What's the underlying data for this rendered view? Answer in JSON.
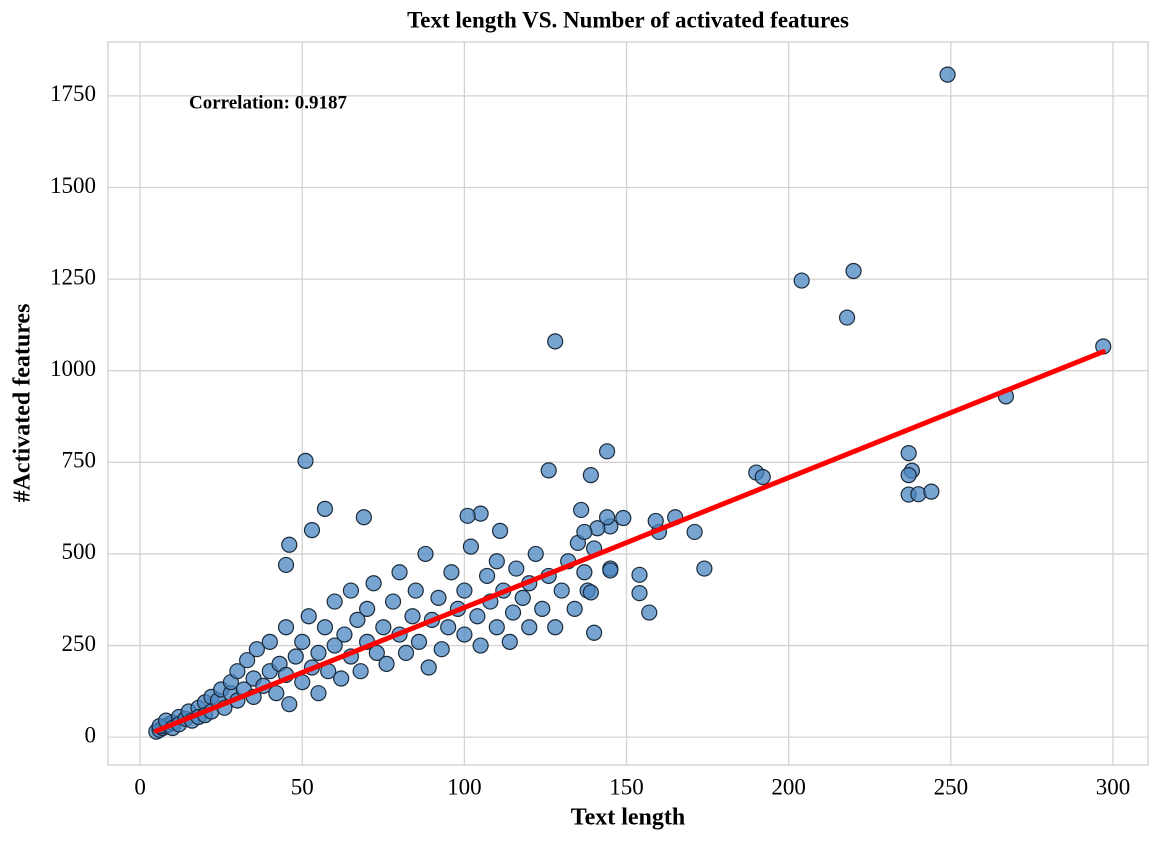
{
  "chart_data": {
    "type": "scatter",
    "title": "Text length VS. Number of activated features",
    "xlabel": "Text length",
    "ylabel": "#Activated features",
    "annotation": "Correlation: 0.9187",
    "color": "#4a86c0",
    "x": [
      5,
      6,
      7,
      8,
      9,
      10,
      6,
      8,
      10,
      12,
      12,
      14,
      15,
      16,
      18,
      18,
      20,
      20,
      22,
      22,
      24,
      25,
      26,
      28,
      28,
      30,
      30,
      32,
      33,
      35,
      35,
      36,
      38,
      40,
      40,
      42,
      43,
      45,
      45,
      46,
      48,
      50,
      50,
      52,
      53,
      55,
      55,
      57,
      58,
      60,
      60,
      62,
      63,
      65,
      65,
      67,
      68,
      70,
      70,
      72,
      73,
      75,
      76,
      78,
      80,
      80,
      82,
      84,
      85,
      86,
      88,
      89,
      90,
      92,
      93,
      95,
      96,
      98,
      100,
      100,
      102,
      104,
      105,
      107,
      108,
      110,
      110,
      112,
      114,
      115,
      116,
      118,
      120,
      120,
      122,
      124,
      126,
      128,
      130,
      132,
      134,
      135,
      137,
      249,
      220,
      204,
      218,
      128,
      297,
      267,
      51,
      237,
      238,
      237,
      190,
      192,
      144,
      126,
      139,
      237,
      240,
      244,
      174,
      171,
      165,
      160,
      159,
      154,
      154,
      157,
      140,
      149,
      145,
      144,
      136,
      141,
      137,
      105,
      101,
      111,
      57,
      69,
      53,
      46,
      45,
      140,
      145,
      145,
      138,
      139
    ],
    "values": [
      15,
      20,
      25,
      30,
      35,
      40,
      30,
      45,
      25,
      55,
      35,
      50,
      70,
      45,
      80,
      55,
      95,
      60,
      110,
      70,
      100,
      130,
      80,
      120,
      150,
      100,
      180,
      130,
      210,
      110,
      160,
      240,
      140,
      180,
      260,
      120,
      200,
      170,
      300,
      90,
      220,
      150,
      260,
      330,
      190,
      230,
      120,
      300,
      180,
      250,
      370,
      160,
      280,
      220,
      400,
      320,
      180,
      260,
      350,
      420,
      230,
      300,
      200,
      370,
      280,
      450,
      230,
      330,
      400,
      260,
      500,
      190,
      320,
      380,
      240,
      300,
      450,
      350,
      280,
      400,
      520,
      330,
      250,
      440,
      370,
      300,
      480,
      400,
      260,
      340,
      460,
      380,
      300,
      420,
      500,
      350,
      440,
      300,
      400,
      480,
      350,
      530,
      450,
      1808,
      1272,
      1246,
      1145,
      1080,
      1066,
      930,
      754,
      775,
      727,
      715,
      722,
      710,
      780,
      728,
      715,
      662,
      663,
      670,
      460,
      560,
      600,
      560,
      590,
      443,
      393,
      340,
      285,
      598,
      575,
      600,
      620,
      570,
      560,
      610,
      604,
      563,
      623,
      600,
      565,
      525,
      470,
      515,
      460,
      455,
      400,
      395
    ],
    "trend": {
      "x": [
        5,
        297
      ],
      "values": [
        17,
        1052
      ],
      "color": "#ff0000"
    },
    "xlim": [
      -9.9,
      310.8
    ],
    "ylim": [
      -76,
      1897
    ],
    "xticks": [
      0,
      50,
      100,
      150,
      200,
      250,
      300
    ],
    "yticks": [
      0,
      250,
      500,
      750,
      1000,
      1250,
      1500,
      1750
    ],
    "grid": true
  }
}
